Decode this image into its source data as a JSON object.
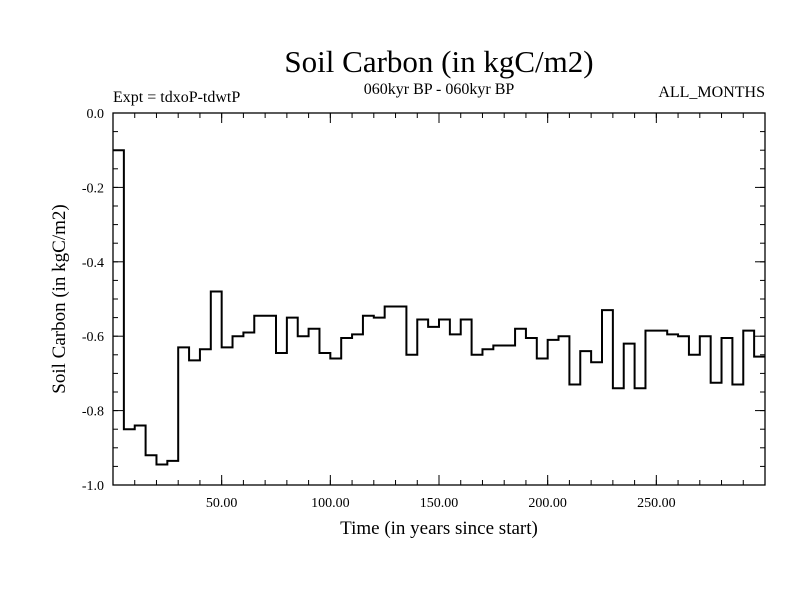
{
  "chart_data": {
    "type": "line",
    "step": true,
    "title": "Soil Carbon (in kgC/m2)",
    "subtitle": "060kyr BP - 060kyr BP",
    "experiment": "Expt = tdxoP-tdwtP",
    "period": "ALL_MONTHS",
    "xlabel": "Time (in years since start)",
    "ylabel": "Soil Carbon (in kgC/m2)",
    "xlim": [
      0,
      300
    ],
    "ylim": [
      -1.0,
      0.0
    ],
    "x_ticks": [
      {
        "value": 50,
        "label": "50.00"
      },
      {
        "value": 100,
        "label": "100.00"
      },
      {
        "value": 150,
        "label": "150.00"
      },
      {
        "value": 200,
        "label": "200.00"
      },
      {
        "value": 250,
        "label": "250.00"
      }
    ],
    "y_ticks": [
      {
        "value": 0.0,
        "label": "0.0"
      },
      {
        "value": -0.2,
        "label": "-0.2"
      },
      {
        "value": -0.4,
        "label": "-0.4"
      },
      {
        "value": -0.6,
        "label": "-0.6"
      },
      {
        "value": -0.8,
        "label": "-0.8"
      },
      {
        "value": -1.0,
        "label": "-1.0"
      }
    ],
    "grid": false,
    "line_color": "#000000",
    "series": [
      {
        "x": [
          0,
          5,
          10,
          15,
          20,
          25,
          30,
          35,
          40,
          45,
          50,
          55,
          60,
          65,
          70,
          75,
          80,
          85,
          90,
          95,
          100,
          105,
          110,
          115,
          120,
          125,
          130,
          135,
          140,
          145,
          150,
          155,
          160,
          165,
          170,
          175,
          180,
          185,
          190,
          195,
          200,
          205,
          210,
          215,
          220,
          225,
          230,
          235,
          240,
          245,
          250,
          255,
          260,
          265,
          270,
          275,
          280,
          285,
          290,
          295
        ],
        "values": [
          -0.1,
          -0.85,
          -0.84,
          -0.92,
          -0.945,
          -0.935,
          -0.63,
          -0.665,
          -0.635,
          -0.48,
          -0.63,
          -0.6,
          -0.59,
          -0.545,
          -0.545,
          -0.645,
          -0.55,
          -0.6,
          -0.58,
          -0.645,
          -0.66,
          -0.605,
          -0.595,
          -0.545,
          -0.55,
          -0.52,
          -0.52,
          -0.65,
          -0.555,
          -0.575,
          -0.555,
          -0.595,
          -0.555,
          -0.65,
          -0.635,
          -0.625,
          -0.625,
          -0.58,
          -0.605,
          -0.66,
          -0.61,
          -0.6,
          -0.73,
          -0.64,
          -0.67,
          -0.53,
          -0.74,
          -0.62,
          -0.74,
          -0.585,
          -0.585,
          -0.595,
          -0.6,
          -0.65,
          -0.6,
          -0.725,
          -0.605,
          -0.73,
          -0.585,
          -0.655
        ]
      }
    ]
  }
}
